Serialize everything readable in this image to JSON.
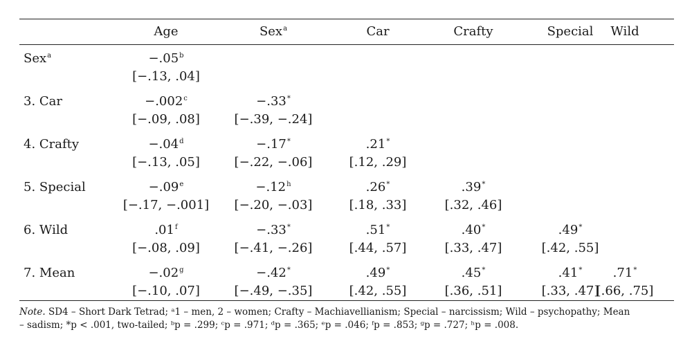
{
  "table": {
    "columns": [
      {
        "label": "Age",
        "sup": ""
      },
      {
        "label": "Sex",
        "sup": "a"
      },
      {
        "label": "Car",
        "sup": ""
      },
      {
        "label": "Crafty",
        "sup": ""
      },
      {
        "label": "Special",
        "sup": ""
      },
      {
        "label": "Wild",
        "sup": ""
      }
    ],
    "rows": [
      {
        "label": "Sex",
        "label_sup": "a",
        "cells": [
          {
            "r": "−.05",
            "sup": "b",
            "ci": "[−.13, .04]"
          }
        ]
      },
      {
        "label": "3. Car",
        "label_sup": "",
        "cells": [
          {
            "r": "−.002",
            "sup": "c",
            "ci": "[−.09, .08]"
          },
          {
            "r": "−.33",
            "sup": "*",
            "ci": "[−.39, −.24]"
          }
        ]
      },
      {
        "label": "4. Crafty",
        "label_sup": "",
        "cells": [
          {
            "r": "−.04",
            "sup": "d",
            "ci": "[−.13, .05]"
          },
          {
            "r": "−.17",
            "sup": "*",
            "ci": "[−.22, −.06]"
          },
          {
            "r": ".21",
            "sup": "*",
            "ci": "[.12, .29]"
          }
        ]
      },
      {
        "label": "5. Special",
        "label_sup": "",
        "cells": [
          {
            "r": "−.09",
            "sup": "e",
            "ci": "[−.17, −.001]"
          },
          {
            "r": "−.12",
            "sup": "h",
            "ci": "[−.20, −.03]"
          },
          {
            "r": ".26",
            "sup": "*",
            "ci": "[.18, .33]"
          },
          {
            "r": ".39",
            "sup": "*",
            "ci": "[.32, .46]"
          }
        ]
      },
      {
        "label": "6. Wild",
        "label_sup": "",
        "cells": [
          {
            "r": ".01",
            "sup": "f",
            "ci": "[−.08, .09]"
          },
          {
            "r": "−.33",
            "sup": "*",
            "ci": "[−.41, −.26]"
          },
          {
            "r": ".51",
            "sup": "*",
            "ci": "[.44, .57]"
          },
          {
            "r": ".40",
            "sup": "*",
            "ci": "[.33, .47]"
          },
          {
            "r": ".49",
            "sup": "*",
            "ci": "[.42, .55]"
          }
        ]
      },
      {
        "label": "7. Mean",
        "label_sup": "",
        "cells": [
          {
            "r": "−.02",
            "sup": "g",
            "ci": "[−.10, .07]"
          },
          {
            "r": "−.42",
            "sup": "*",
            "ci": "[−.49, −.35]"
          },
          {
            "r": ".49",
            "sup": "*",
            "ci": "[.42, .55]"
          },
          {
            "r": ".45",
            "sup": "*",
            "ci": "[.36, .51]"
          },
          {
            "r": ".41",
            "sup": "*",
            "ci": "[.33, .47]"
          },
          {
            "r": ".71",
            "sup": "*",
            "ci": "[.66, .75]"
          }
        ]
      }
    ]
  },
  "note": {
    "lead": "Note.",
    "line1": "SD4 – Short Dark Tetrad; ᵃ1 – men, 2 – women; Crafty – Machiavellianism; Special – narcissism; Wild – psychopathy; Mean",
    "line2": "– sadism; *p < .001, two-tailed; ᵇp = .299; ᶜp = .971; ᵈp = .365; ᵉp = .046; ᶠp = .853; ᵍp = .727; ʰp = .008."
  }
}
